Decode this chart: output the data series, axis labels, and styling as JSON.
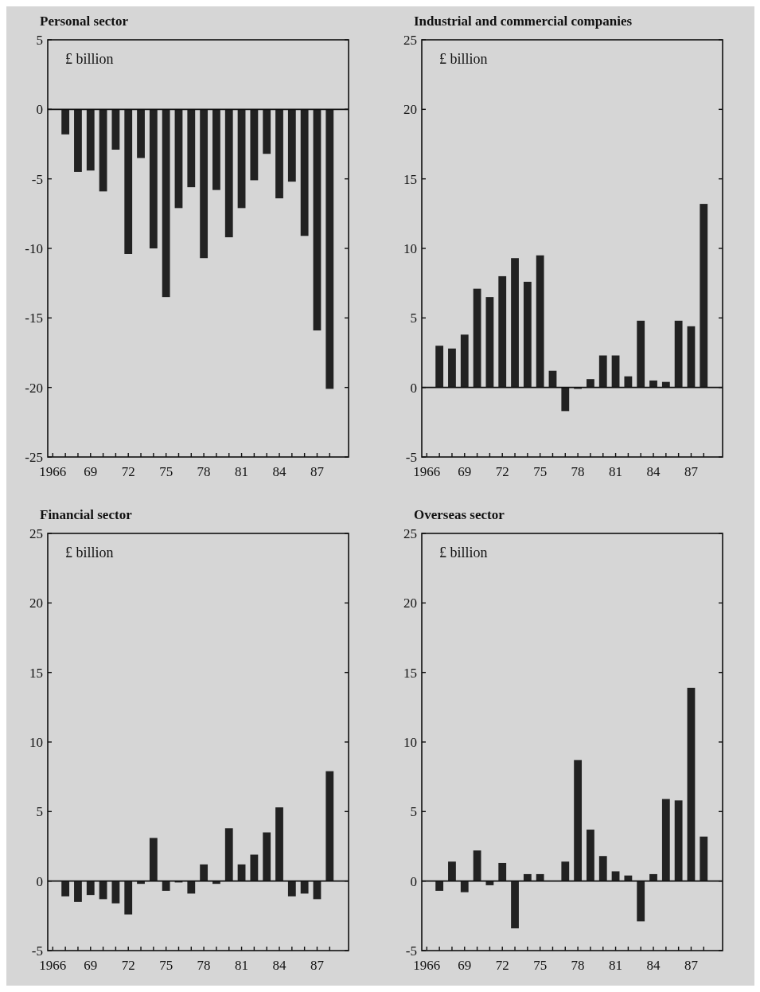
{
  "chart_data": [
    {
      "type": "bar",
      "title": "Personal sector",
      "annotations": [
        "£ billion"
      ],
      "x": [
        1967,
        1968,
        1969,
        1970,
        1971,
        1972,
        1973,
        1974,
        1975,
        1976,
        1977,
        1978,
        1979,
        1980,
        1981,
        1982,
        1983,
        1984,
        1985,
        1986,
        1987,
        1988
      ],
      "values": [
        -1.8,
        -4.5,
        -4.4,
        -5.9,
        -2.9,
        -10.4,
        -3.5,
        -10.0,
        -13.5,
        -7.1,
        -5.6,
        -10.7,
        -5.8,
        -9.2,
        -7.1,
        -5.1,
        -3.2,
        -6.4,
        -5.2,
        -9.1,
        -15.9,
        -20.1
      ],
      "color": "#222222",
      "xlim": [
        1965.6,
        1989.5
      ],
      "xticks": [
        {
          "value": 1966,
          "label": "1966"
        },
        {
          "value": 1967,
          "label": null
        },
        {
          "value": 1968,
          "label": null
        },
        {
          "value": 1969,
          "label": "69"
        },
        {
          "value": 1970,
          "label": null
        },
        {
          "value": 1971,
          "label": null
        },
        {
          "value": 1972,
          "label": "72"
        },
        {
          "value": 1973,
          "label": null
        },
        {
          "value": 1974,
          "label": null
        },
        {
          "value": 1975,
          "label": "75"
        },
        {
          "value": 1976,
          "label": null
        },
        {
          "value": 1977,
          "label": null
        },
        {
          "value": 1978,
          "label": "78"
        },
        {
          "value": 1979,
          "label": null
        },
        {
          "value": 1980,
          "label": null
        },
        {
          "value": 1981,
          "label": "81"
        },
        {
          "value": 1982,
          "label": null
        },
        {
          "value": 1983,
          "label": null
        },
        {
          "value": 1984,
          "label": "84"
        },
        {
          "value": 1985,
          "label": null
        },
        {
          "value": 1986,
          "label": null
        },
        {
          "value": 1987,
          "label": "87"
        },
        {
          "value": 1988,
          "label": null
        }
      ],
      "ylim": [
        -25,
        5
      ],
      "yticks": [
        -25,
        -20,
        -15,
        -10,
        -5,
        0,
        5
      ]
    },
    {
      "type": "bar",
      "title": "Industrial and commercial companies",
      "annotations": [
        "£ billion"
      ],
      "x": [
        1967,
        1968,
        1969,
        1970,
        1971,
        1972,
        1973,
        1974,
        1975,
        1976,
        1977,
        1978,
        1979,
        1980,
        1981,
        1982,
        1983,
        1984,
        1985,
        1986,
        1987,
        1988
      ],
      "values": [
        3.0,
        2.8,
        3.8,
        7.1,
        6.5,
        8.0,
        9.3,
        7.6,
        9.5,
        1.2,
        -1.7,
        -0.1,
        0.6,
        2.3,
        2.3,
        0.8,
        4.8,
        0.5,
        0.4,
        4.8,
        4.4,
        13.2
      ],
      "color": "#222222",
      "xlim": [
        1965.6,
        1989.5
      ],
      "xticks": [
        {
          "value": 1966,
          "label": "1966"
        },
        {
          "value": 1967,
          "label": null
        },
        {
          "value": 1968,
          "label": null
        },
        {
          "value": 1969,
          "label": "69"
        },
        {
          "value": 1970,
          "label": null
        },
        {
          "value": 1971,
          "label": null
        },
        {
          "value": 1972,
          "label": "72"
        },
        {
          "value": 1973,
          "label": null
        },
        {
          "value": 1974,
          "label": null
        },
        {
          "value": 1975,
          "label": "75"
        },
        {
          "value": 1976,
          "label": null
        },
        {
          "value": 1977,
          "label": null
        },
        {
          "value": 1978,
          "label": "78"
        },
        {
          "value": 1979,
          "label": null
        },
        {
          "value": 1980,
          "label": null
        },
        {
          "value": 1981,
          "label": "81"
        },
        {
          "value": 1982,
          "label": null
        },
        {
          "value": 1983,
          "label": null
        },
        {
          "value": 1984,
          "label": "84"
        },
        {
          "value": 1985,
          "label": null
        },
        {
          "value": 1986,
          "label": null
        },
        {
          "value": 1987,
          "label": "87"
        },
        {
          "value": 1988,
          "label": null
        }
      ],
      "ylim": [
        -5,
        25
      ],
      "yticks": [
        -5,
        0,
        5,
        10,
        15,
        20,
        25
      ]
    },
    {
      "type": "bar",
      "title": "Financial sector",
      "annotations": [
        "£ billion"
      ],
      "x": [
        1967,
        1968,
        1969,
        1970,
        1971,
        1972,
        1973,
        1974,
        1975,
        1976,
        1977,
        1978,
        1979,
        1980,
        1981,
        1982,
        1983,
        1984,
        1985,
        1986,
        1987,
        1988
      ],
      "values": [
        -1.1,
        -1.5,
        -1.0,
        -1.3,
        -1.6,
        -2.4,
        -0.2,
        3.1,
        -0.7,
        -0.1,
        -0.9,
        1.2,
        -0.2,
        3.8,
        1.2,
        1.9,
        3.5,
        5.3,
        -1.1,
        -0.9,
        -1.3,
        7.9
      ],
      "color": "#222222",
      "xlim": [
        1965.6,
        1989.5
      ],
      "xticks": [
        {
          "value": 1966,
          "label": "1966"
        },
        {
          "value": 1967,
          "label": null
        },
        {
          "value": 1968,
          "label": null
        },
        {
          "value": 1969,
          "label": "69"
        },
        {
          "value": 1970,
          "label": null
        },
        {
          "value": 1971,
          "label": null
        },
        {
          "value": 1972,
          "label": "72"
        },
        {
          "value": 1973,
          "label": null
        },
        {
          "value": 1974,
          "label": null
        },
        {
          "value": 1975,
          "label": "75"
        },
        {
          "value": 1976,
          "label": null
        },
        {
          "value": 1977,
          "label": null
        },
        {
          "value": 1978,
          "label": "78"
        },
        {
          "value": 1979,
          "label": null
        },
        {
          "value": 1980,
          "label": null
        },
        {
          "value": 1981,
          "label": "81"
        },
        {
          "value": 1982,
          "label": null
        },
        {
          "value": 1983,
          "label": null
        },
        {
          "value": 1984,
          "label": "84"
        },
        {
          "value": 1985,
          "label": null
        },
        {
          "value": 1986,
          "label": null
        },
        {
          "value": 1987,
          "label": "87"
        },
        {
          "value": 1988,
          "label": null
        }
      ],
      "ylim": [
        -5,
        25
      ],
      "yticks": [
        -5,
        0,
        5,
        10,
        15,
        20,
        25
      ]
    },
    {
      "type": "bar",
      "title": "Overseas sector",
      "annotations": [
        "£ billion"
      ],
      "x": [
        1967,
        1968,
        1969,
        1970,
        1971,
        1972,
        1973,
        1974,
        1975,
        1976,
        1977,
        1978,
        1979,
        1980,
        1981,
        1982,
        1983,
        1984,
        1985,
        1986,
        1987,
        1988
      ],
      "values": [
        -0.7,
        1.4,
        -0.8,
        2.2,
        -0.3,
        1.3,
        -3.4,
        0.5,
        0.5,
        0,
        1.4,
        8.7,
        3.7,
        1.8,
        0.7,
        0.4,
        -2.9,
        0.5,
        5.9,
        5.8,
        13.9,
        3.2
      ],
      "color": "#222222",
      "xlim": [
        1965.6,
        1989.5
      ],
      "xticks": [
        {
          "value": 1966,
          "label": "1966"
        },
        {
          "value": 1967,
          "label": null
        },
        {
          "value": 1968,
          "label": null
        },
        {
          "value": 1969,
          "label": "69"
        },
        {
          "value": 1970,
          "label": null
        },
        {
          "value": 1971,
          "label": null
        },
        {
          "value": 1972,
          "label": "72"
        },
        {
          "value": 1973,
          "label": null
        },
        {
          "value": 1974,
          "label": null
        },
        {
          "value": 1975,
          "label": "75"
        },
        {
          "value": 1976,
          "label": null
        },
        {
          "value": 1977,
          "label": null
        },
        {
          "value": 1978,
          "label": "78"
        },
        {
          "value": 1979,
          "label": null
        },
        {
          "value": 1980,
          "label": null
        },
        {
          "value": 1981,
          "label": "81"
        },
        {
          "value": 1982,
          "label": null
        },
        {
          "value": 1983,
          "label": null
        },
        {
          "value": 1984,
          "label": "84"
        },
        {
          "value": 1985,
          "label": null
        },
        {
          "value": 1986,
          "label": null
        },
        {
          "value": 1987,
          "label": "87"
        },
        {
          "value": 1988,
          "label": null
        }
      ],
      "ylim": [
        -5,
        25
      ],
      "yticks": [
        -5,
        0,
        5,
        10,
        15,
        20,
        25
      ]
    }
  ]
}
